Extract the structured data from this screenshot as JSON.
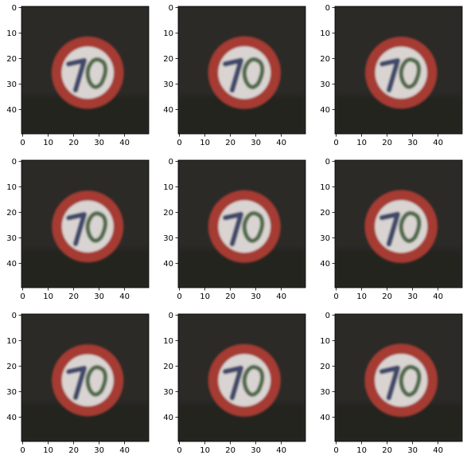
{
  "chart_data": {
    "type": "image-grid",
    "rows": 3,
    "cols": 3,
    "panels": [
      {
        "panel": 1,
        "image": "speed-limit-70-sign",
        "xticks": [
          0,
          10,
          20,
          30,
          40
        ],
        "yticks": [
          0,
          10,
          20,
          30,
          40
        ],
        "xlim": [
          -0.5,
          49.5
        ],
        "ylim": [
          49.5,
          -0.5
        ]
      },
      {
        "panel": 2,
        "image": "speed-limit-70-sign",
        "xticks": [
          0,
          10,
          20,
          30,
          40
        ],
        "yticks": [
          0,
          10,
          20,
          30,
          40
        ],
        "xlim": [
          -0.5,
          49.5
        ],
        "ylim": [
          49.5,
          -0.5
        ]
      },
      {
        "panel": 3,
        "image": "speed-limit-70-sign",
        "xticks": [
          0,
          10,
          20,
          30,
          40
        ],
        "yticks": [
          0,
          10,
          20,
          30,
          40
        ],
        "xlim": [
          -0.5,
          49.5
        ],
        "ylim": [
          49.5,
          -0.5
        ]
      },
      {
        "panel": 4,
        "image": "speed-limit-70-sign",
        "xticks": [
          0,
          10,
          20,
          30,
          40
        ],
        "yticks": [
          0,
          10,
          20,
          30,
          40
        ],
        "xlim": [
          -0.5,
          49.5
        ],
        "ylim": [
          49.5,
          -0.5
        ]
      },
      {
        "panel": 5,
        "image": "speed-limit-70-sign",
        "xticks": [
          0,
          10,
          20,
          30,
          40
        ],
        "yticks": [
          0,
          10,
          20,
          30,
          40
        ],
        "xlim": [
          -0.5,
          49.5
        ],
        "ylim": [
          49.5,
          -0.5
        ]
      },
      {
        "panel": 6,
        "image": "speed-limit-70-sign",
        "xticks": [
          0,
          10,
          20,
          30,
          40
        ],
        "yticks": [
          0,
          10,
          20,
          30,
          40
        ],
        "xlim": [
          -0.5,
          49.5
        ],
        "ylim": [
          49.5,
          -0.5
        ]
      },
      {
        "panel": 7,
        "image": "speed-limit-70-sign",
        "xticks": [
          0,
          10,
          20,
          30,
          40
        ],
        "yticks": [
          0,
          10,
          20,
          30,
          40
        ],
        "xlim": [
          -0.5,
          49.5
        ],
        "ylim": [
          49.5,
          -0.5
        ]
      },
      {
        "panel": 8,
        "image": "speed-limit-70-sign",
        "xticks": [
          0,
          10,
          20,
          30,
          40
        ],
        "yticks": [
          0,
          10,
          20,
          30,
          40
        ],
        "xlim": [
          -0.5,
          49.5
        ],
        "ylim": [
          49.5,
          -0.5
        ]
      },
      {
        "panel": 9,
        "image": "speed-limit-70-sign",
        "xticks": [
          0,
          10,
          20,
          30,
          40
        ],
        "yticks": [
          0,
          10,
          20,
          30,
          40
        ],
        "xlim": [
          -0.5,
          49.5
        ],
        "ylim": [
          49.5,
          -0.5
        ]
      }
    ],
    "colors": {
      "background": "#2b2a27",
      "ring": "#a53a32",
      "face": "#d9d4d2",
      "glyph": "#3f4a6a"
    }
  }
}
